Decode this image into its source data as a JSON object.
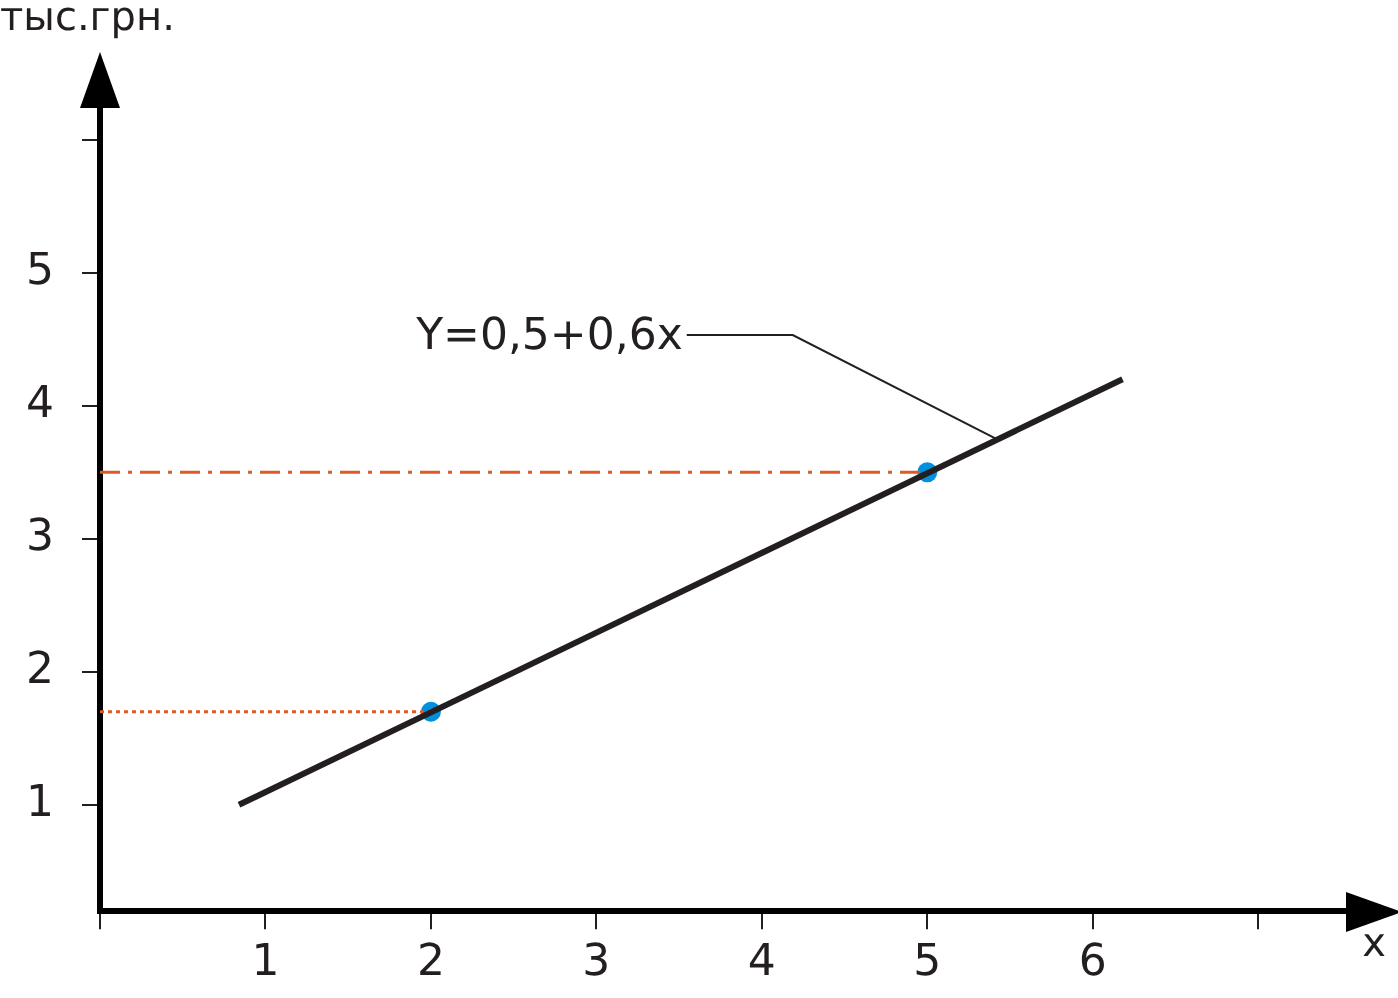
{
  "chart_data": {
    "type": "line",
    "xlabel": "x",
    "ylabel": "тыс.грн.",
    "xlim": [
      0,
      7.7
    ],
    "xticks": [
      {
        "value": 0,
        "label": null
      },
      1,
      2,
      3,
      4,
      5,
      6,
      {
        "value": 7,
        "label": null
      }
    ],
    "ylim": [
      0.2,
      6.45
    ],
    "yticks": [
      1,
      2,
      3,
      4,
      5,
      {
        "value": 6,
        "label": null
      }
    ],
    "grid": false,
    "legend": false,
    "series": [
      {
        "type": "line",
        "color": "#231f20",
        "x": [
          0.84,
          6.18
        ],
        "values": [
          1.0,
          4.2
        ],
        "marker": "none",
        "line_style": "solid"
      },
      {
        "type": "line",
        "color": "#e05a28",
        "x": [
          0,
          2
        ],
        "values": [
          1.7,
          1.7
        ],
        "marker": "none",
        "line_style": "dotted"
      },
      {
        "type": "line",
        "color": "#e05a28",
        "x": [
          0,
          5
        ],
        "values": [
          3.5,
          3.5
        ],
        "marker": "none",
        "line_style": "dashed"
      },
      {
        "type": "scatter",
        "color": "#0090dc",
        "x": [
          2,
          5
        ],
        "values": [
          1.7,
          3.5
        ],
        "marker": "circle"
      }
    ],
    "annotations": [
      {
        "text": "Y=0,5+0,6x",
        "x": 5.42,
        "y": 3.75
      }
    ]
  }
}
